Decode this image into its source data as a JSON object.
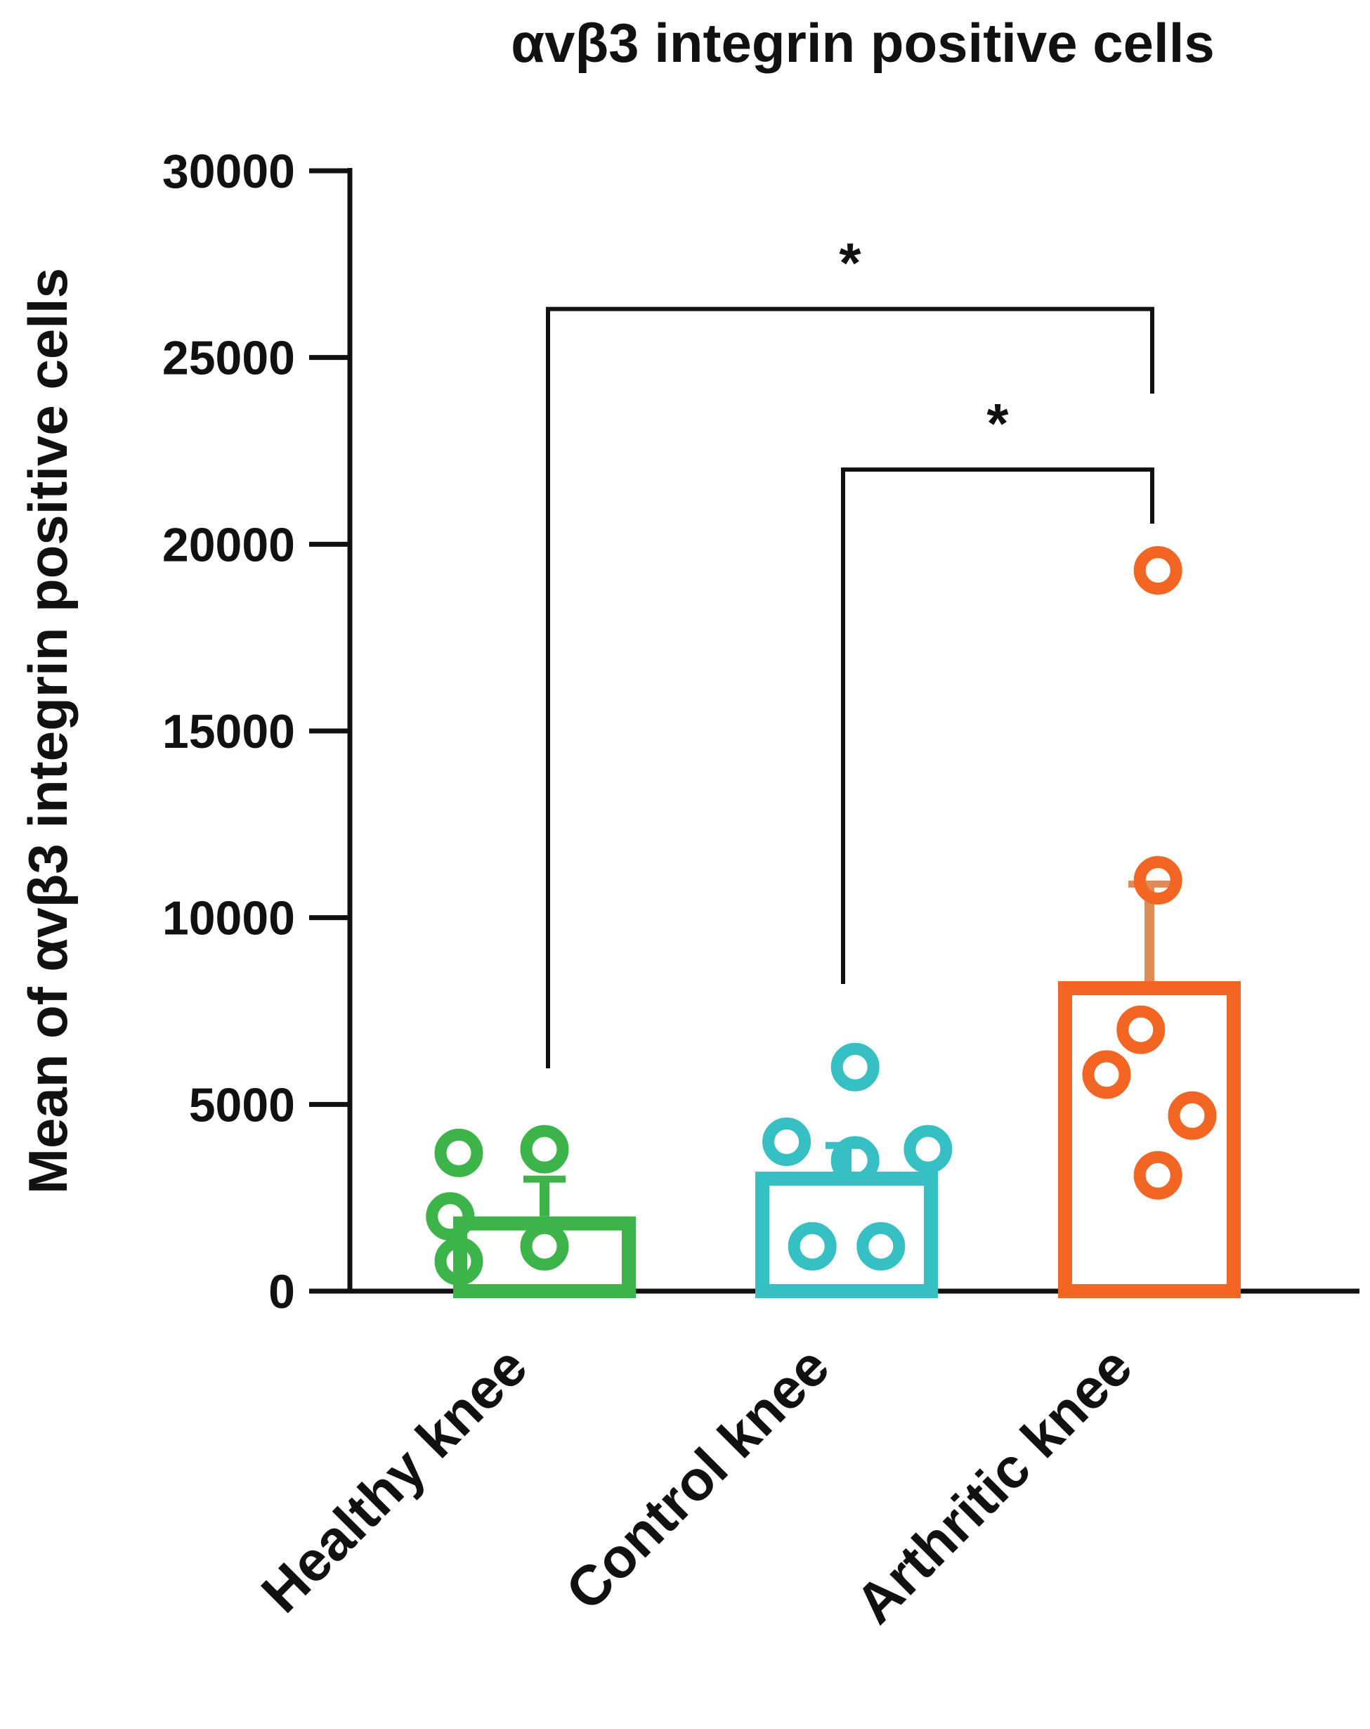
{
  "chart_data": {
    "type": "bar",
    "title": "αvβ3 integrin positive cells",
    "xlabel": "",
    "ylabel": "Mean of αvβ3 integrin positive cells",
    "ylim": [
      0,
      30000
    ],
    "yticks": [
      0,
      5000,
      10000,
      15000,
      20000,
      25000,
      30000
    ],
    "ytick_labels": [
      "0",
      "5000",
      "10000",
      "15000",
      "20000",
      "25000",
      "30000"
    ],
    "categories": [
      "Healthy knee",
      "Control knee",
      "Arthritic knee"
    ],
    "values": [
      2000,
      3200,
      8300
    ],
    "error": [
      1000,
      700,
      2600
    ],
    "colors": [
      "#3db449",
      "#37c0c4",
      "#f26522"
    ],
    "error_colors": [
      "#3db449",
      "#37c0c4",
      "#e08a55"
    ],
    "points": [
      [
        [
          1,
          3700
        ],
        [
          2,
          3800
        ],
        [
          0.9,
          2000
        ],
        [
          1,
          800
        ],
        [
          2,
          1200
        ]
      ],
      [
        [
          1.3,
          4000
        ],
        [
          2.1,
          6000
        ],
        [
          2.95,
          3800
        ],
        [
          1.6,
          1200
        ],
        [
          2.4,
          1200
        ],
        [
          2.1,
          3500
        ]
      ],
      [
        [
          2.1,
          19300
        ],
        [
          2.1,
          11000
        ],
        [
          1.9,
          7000
        ],
        [
          1.5,
          5800
        ],
        [
          2.5,
          4700
        ],
        [
          2.1,
          3100
        ]
      ]
    ],
    "significance": [
      {
        "from": "Healthy knee",
        "to": "Arthritic knee",
        "label": "*",
        "y": 26300
      },
      {
        "from": "Control knee",
        "to": "Arthritic knee",
        "label": "*",
        "y": 22000
      }
    ]
  }
}
